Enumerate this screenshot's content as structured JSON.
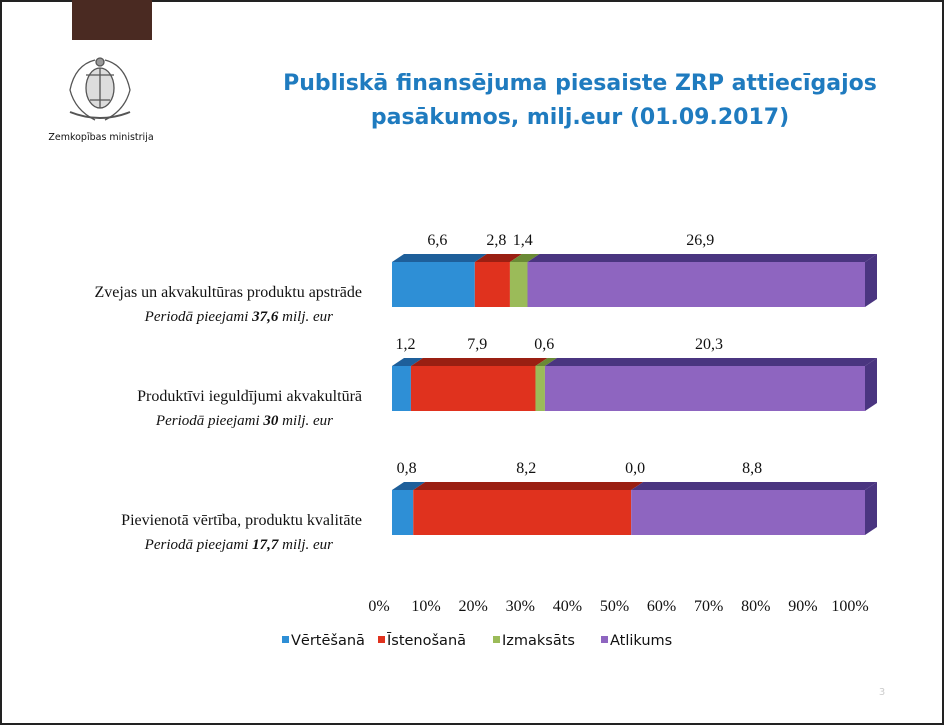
{
  "ministry": "Zemkopības ministrija",
  "page_number": "3",
  "chart_data": {
    "type": "bar",
    "orientation": "horizontal",
    "stacked_percent": true,
    "title": [
      "Publiskā finansējuma piesaiste ZRP attiecīgajos",
      "pasākumos, milj.eur (01.09.2017)"
    ],
    "categories": [
      "Zvejas un akvakultūras produktu apstrāde",
      "Produktīvi ieguldījumi akvakultūrā",
      "Pievienotā vērtība, produktu kvalitāte"
    ],
    "available": {
      "prefix": "Periodā pieejami",
      "amounts": [
        "37,6",
        "30",
        "17,7"
      ],
      "unit": "milj. eur"
    },
    "series": [
      {
        "name": "Vērtēšanā",
        "color": "#2e8fd6",
        "top": "#1e5f9a",
        "values": [
          6.6,
          1.2,
          0.8
        ],
        "value_labels": [
          "6,6",
          "1,2",
          "0,8"
        ]
      },
      {
        "name": "Īstenošanā",
        "color": "#e0321e",
        "top": "#9a1f12",
        "values": [
          2.8,
          7.9,
          8.2
        ],
        "value_labels": [
          "2,8",
          "7,9",
          "8,2"
        ]
      },
      {
        "name": "Izmaksāts",
        "color": "#9bbb59",
        "top": "#6a8a35",
        "values": [
          1.4,
          0.6,
          0.0
        ],
        "value_labels": [
          "1,4",
          "0,6",
          "0,0"
        ]
      },
      {
        "name": "Atlikums",
        "color": "#8e65c0",
        "top": "#4a3580",
        "values": [
          26.9,
          20.3,
          8.8
        ],
        "value_labels": [
          "26,9",
          "20,3",
          "8,8"
        ]
      }
    ],
    "xlim": [
      0,
      100
    ],
    "xticks": [
      {
        "value": 0,
        "label": "0%"
      },
      {
        "value": 10,
        "label": "10%"
      },
      {
        "value": 20,
        "label": "20%"
      },
      {
        "value": 30,
        "label": "30%"
      },
      {
        "value": 40,
        "label": "40%"
      },
      {
        "value": 50,
        "label": "50%"
      },
      {
        "value": 60,
        "label": "60%"
      },
      {
        "value": 70,
        "label": "70%"
      },
      {
        "value": 80,
        "label": "80%"
      },
      {
        "value": 90,
        "label": "90%"
      },
      {
        "value": 100,
        "label": "100%"
      }
    ],
    "legend": "bottom"
  }
}
